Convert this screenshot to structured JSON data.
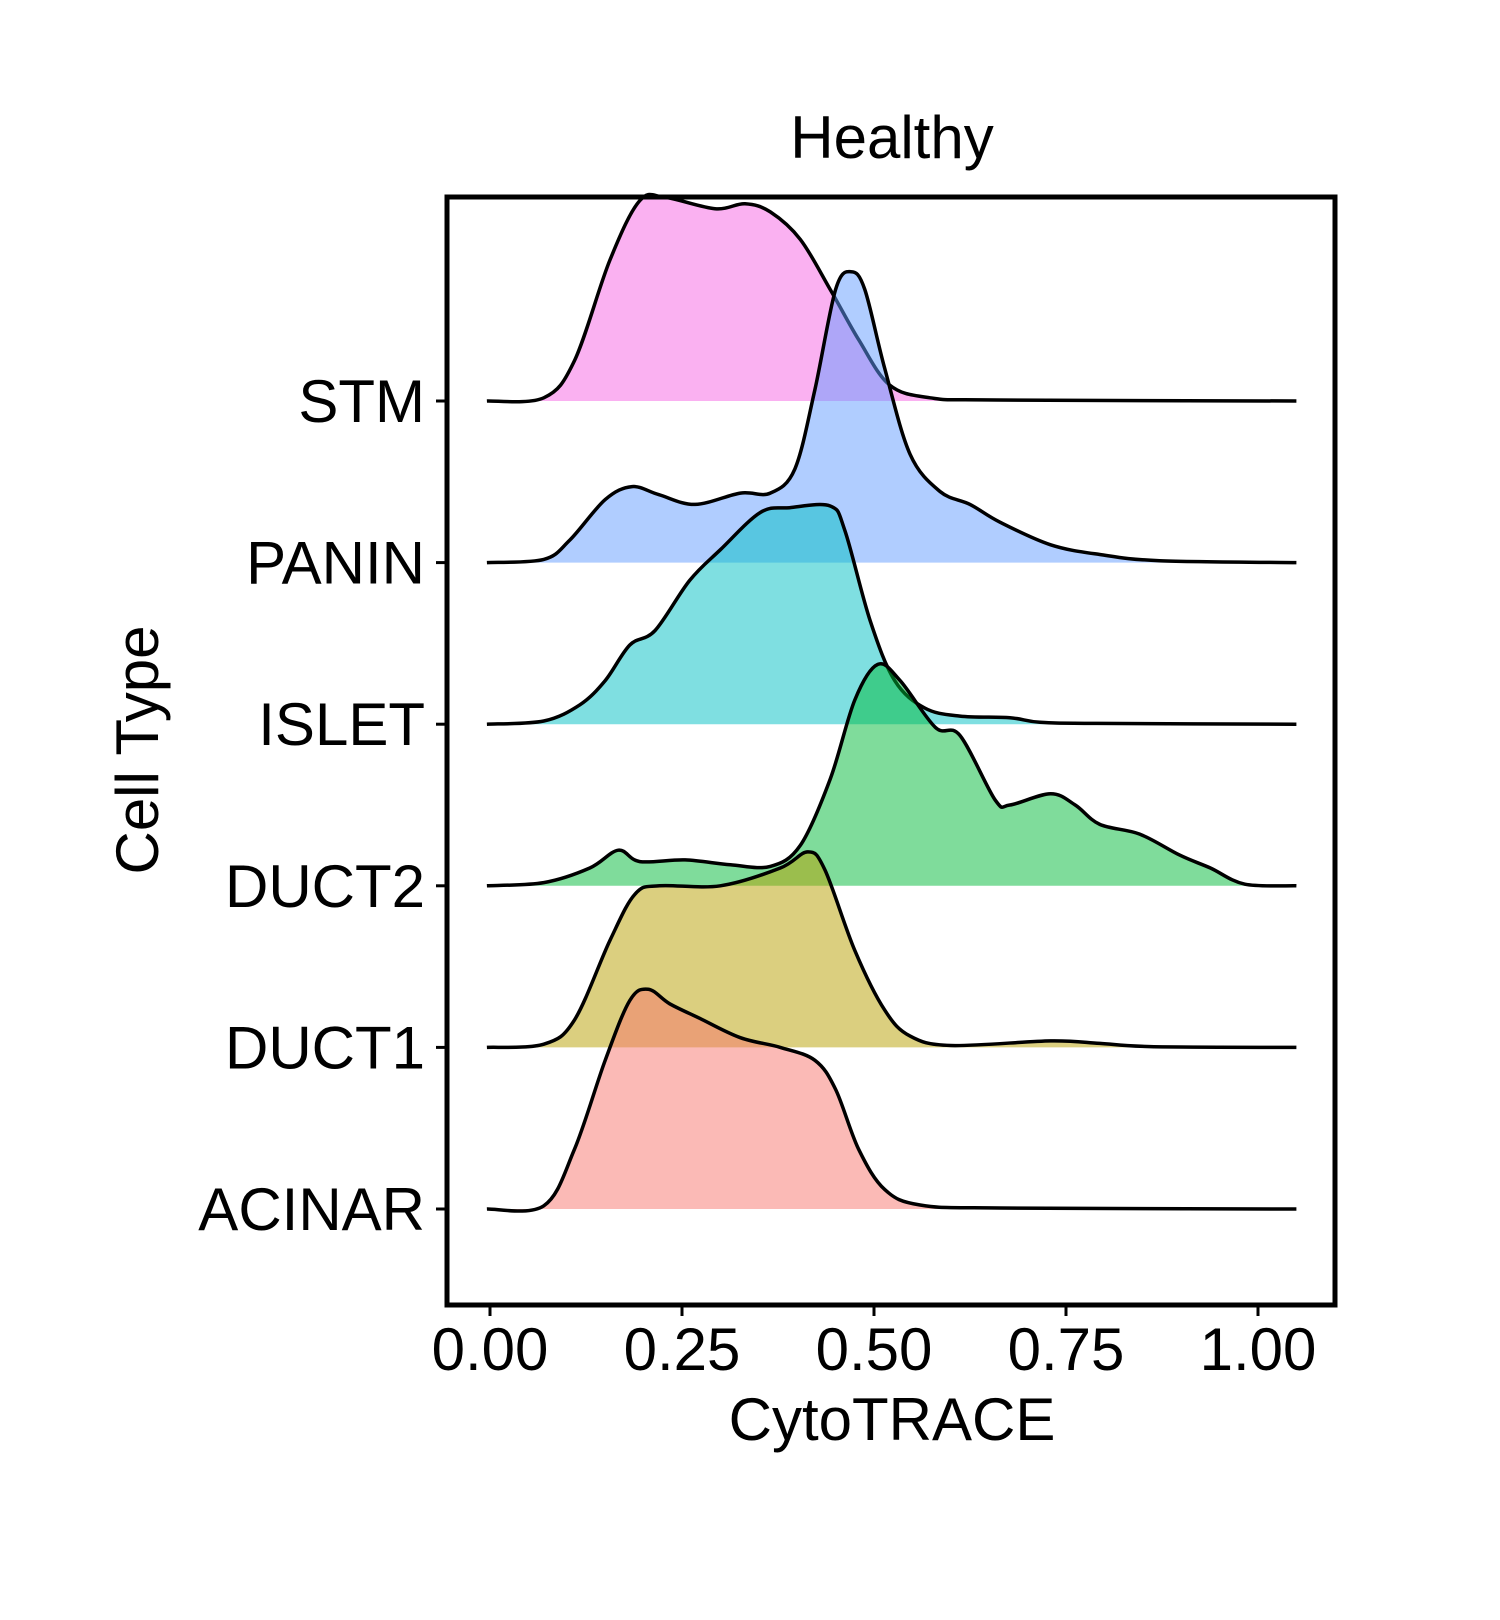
{
  "chart_data": {
    "type": "ridgeline",
    "title": "Healthy",
    "xlabel": "CytoTRACE",
    "ylabel": "Cell Type",
    "xlim": [
      -0.06,
      1.1
    ],
    "x_ticks": [
      0.0,
      0.25,
      0.5,
      0.75,
      1.0
    ],
    "x_tick_labels": [
      "0.00",
      "0.25",
      "0.50",
      "0.75",
      "1.00"
    ],
    "height_units": "relative density, 1 = spacing between rows",
    "series": [
      {
        "name": "STM",
        "color": "#F564E3",
        "points": [
          [
            -0.004,
            0
          ],
          [
            0.07,
            0.02
          ],
          [
            0.11,
            0.25
          ],
          [
            0.156,
            0.87
          ],
          [
            0.195,
            1.24
          ],
          [
            0.228,
            1.26
          ],
          [
            0.293,
            1.19
          ],
          [
            0.332,
            1.22
          ],
          [
            0.365,
            1.17
          ],
          [
            0.404,
            1.0
          ],
          [
            0.443,
            0.69
          ],
          [
            0.48,
            0.38
          ],
          [
            0.52,
            0.1
          ],
          [
            0.573,
            0.02
          ],
          [
            0.66,
            0.006
          ],
          [
            1.05,
            0
          ]
        ]
      },
      {
        "name": "PANIN",
        "color": "#619CFF",
        "points": [
          [
            -0.004,
            0
          ],
          [
            0.07,
            0.02
          ],
          [
            0.104,
            0.14
          ],
          [
            0.15,
            0.39
          ],
          [
            0.185,
            0.47
          ],
          [
            0.22,
            0.42
          ],
          [
            0.267,
            0.36
          ],
          [
            0.326,
            0.43
          ],
          [
            0.365,
            0.43
          ],
          [
            0.397,
            0.58
          ],
          [
            0.423,
            1.07
          ],
          [
            0.45,
            1.69
          ],
          [
            0.47,
            1.8
          ],
          [
            0.488,
            1.69
          ],
          [
            0.514,
            1.2
          ],
          [
            0.547,
            0.67
          ],
          [
            0.586,
            0.44
          ],
          [
            0.625,
            0.36
          ],
          [
            0.664,
            0.25
          ],
          [
            0.73,
            0.11
          ],
          [
            0.794,
            0.05
          ],
          [
            0.872,
            0.012
          ],
          [
            1.05,
            0
          ]
        ]
      },
      {
        "name": "ISLET",
        "color": "#00BFC4",
        "points": [
          [
            -0.004,
            0
          ],
          [
            0.07,
            0.02
          ],
          [
            0.117,
            0.12
          ],
          [
            0.15,
            0.27
          ],
          [
            0.182,
            0.49
          ],
          [
            0.215,
            0.58
          ],
          [
            0.26,
            0.89
          ],
          [
            0.3,
            1.08
          ],
          [
            0.352,
            1.31
          ],
          [
            0.39,
            1.34
          ],
          [
            0.443,
            1.35
          ],
          [
            0.462,
            1.2
          ],
          [
            0.495,
            0.64
          ],
          [
            0.527,
            0.27
          ],
          [
            0.566,
            0.1
          ],
          [
            0.612,
            0.05
          ],
          [
            0.677,
            0.04
          ],
          [
            0.716,
            0.012
          ],
          [
            0.79,
            0.005
          ],
          [
            1.05,
            0
          ]
        ]
      },
      {
        "name": "DUCT2",
        "color": "#00BA38",
        "points": [
          [
            -0.004,
            0
          ],
          [
            0.07,
            0.02
          ],
          [
            0.13,
            0.11
          ],
          [
            0.167,
            0.22
          ],
          [
            0.195,
            0.15
          ],
          [
            0.254,
            0.16
          ],
          [
            0.313,
            0.13
          ],
          [
            0.365,
            0.12
          ],
          [
            0.404,
            0.25
          ],
          [
            0.443,
            0.66
          ],
          [
            0.475,
            1.15
          ],
          [
            0.505,
            1.37
          ],
          [
            0.534,
            1.27
          ],
          [
            0.58,
            0.98
          ],
          [
            0.612,
            0.93
          ],
          [
            0.658,
            0.53
          ],
          [
            0.677,
            0.5
          ],
          [
            0.73,
            0.57
          ],
          [
            0.762,
            0.5
          ],
          [
            0.794,
            0.38
          ],
          [
            0.846,
            0.32
          ],
          [
            0.898,
            0.19
          ],
          [
            0.938,
            0.11
          ],
          [
            0.983,
            0.01
          ],
          [
            1.05,
            0
          ]
        ]
      },
      {
        "name": "DUCT1",
        "color": "#B79F00",
        "points": [
          [
            -0.004,
            0
          ],
          [
            0.07,
            0.02
          ],
          [
            0.11,
            0.17
          ],
          [
            0.156,
            0.66
          ],
          [
            0.189,
            0.95
          ],
          [
            0.221,
            1.0
          ],
          [
            0.3,
            1.0
          ],
          [
            0.378,
            1.11
          ],
          [
            0.414,
            1.21
          ],
          [
            0.436,
            1.1
          ],
          [
            0.475,
            0.6
          ],
          [
            0.514,
            0.23
          ],
          [
            0.547,
            0.07
          ],
          [
            0.6,
            0.012
          ],
          [
            0.73,
            0.04
          ],
          [
            0.794,
            0.025
          ],
          [
            0.86,
            0.005
          ],
          [
            1.05,
            0
          ]
        ]
      },
      {
        "name": "ACINAR",
        "color": "#F8766D",
        "points": [
          [
            -0.004,
            0
          ],
          [
            0.07,
            0.02
          ],
          [
            0.11,
            0.37
          ],
          [
            0.15,
            0.92
          ],
          [
            0.182,
            1.29
          ],
          [
            0.206,
            1.36
          ],
          [
            0.234,
            1.27
          ],
          [
            0.273,
            1.18
          ],
          [
            0.326,
            1.06
          ],
          [
            0.378,
            1.0
          ],
          [
            0.423,
            0.92
          ],
          [
            0.45,
            0.74
          ],
          [
            0.48,
            0.37
          ],
          [
            0.514,
            0.12
          ],
          [
            0.56,
            0.025
          ],
          [
            0.664,
            0.006
          ],
          [
            1.05,
            0
          ]
        ]
      }
    ]
  }
}
